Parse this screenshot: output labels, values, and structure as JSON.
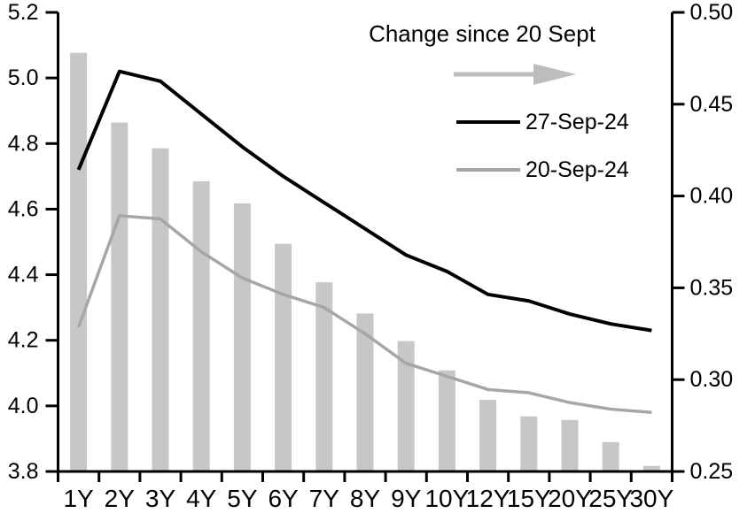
{
  "chart_data": {
    "type": "combo-bar-line",
    "title": "",
    "categories": [
      "1Y",
      "2Y",
      "3Y",
      "4Y",
      "5Y",
      "6Y",
      "7Y",
      "8Y",
      "9Y",
      "10Y",
      "12Y",
      "15Y",
      "20Y",
      "25Y",
      "30Y"
    ],
    "left_axis": {
      "min": 3.8,
      "max": 5.2,
      "step": 0.2,
      "tick_labels": [
        "5.2",
        "5.0",
        "4.8",
        "4.6",
        "4.4",
        "4.2",
        "4.0",
        "3.8"
      ]
    },
    "right_axis": {
      "min": 0.25,
      "max": 0.5,
      "step": 0.05,
      "tick_labels": [
        "0.50",
        "0.45",
        "0.40",
        "0.35",
        "0.30",
        "0.25"
      ]
    },
    "grid": false,
    "background": "#ffffff",
    "series": [
      {
        "name": "Change since 20 Sept",
        "type": "bar",
        "axis": "right",
        "color": "#c7c7c7",
        "values": [
          0.478,
          0.44,
          0.426,
          0.408,
          0.396,
          0.374,
          0.353,
          0.336,
          0.321,
          0.305,
          0.289,
          0.28,
          0.278,
          0.266,
          0.253
        ]
      },
      {
        "name": "27-Sep-24",
        "type": "line",
        "axis": "left",
        "color": "#000000",
        "stroke_width": 4,
        "values": [
          4.72,
          5.02,
          4.99,
          4.89,
          4.79,
          4.7,
          4.62,
          4.54,
          4.46,
          4.41,
          4.34,
          4.32,
          4.28,
          4.25,
          4.23
        ]
      },
      {
        "name": "20-Sep-24",
        "type": "line",
        "axis": "left",
        "color": "#a6a6a6",
        "stroke_width": 3.5,
        "values": [
          4.24,
          4.58,
          4.57,
          4.47,
          4.39,
          4.34,
          4.3,
          4.22,
          4.13,
          4.09,
          4.05,
          4.04,
          4.01,
          3.99,
          3.98
        ]
      }
    ],
    "legend": {
      "title": "Change since 20 Sept",
      "arrow_color": "#bdbdbd",
      "entries": [
        {
          "label": "27-Sep-24",
          "color": "#000000"
        },
        {
          "label": "20-Sep-24",
          "color": "#a6a6a6"
        }
      ],
      "position": "top-right-inside"
    }
  }
}
